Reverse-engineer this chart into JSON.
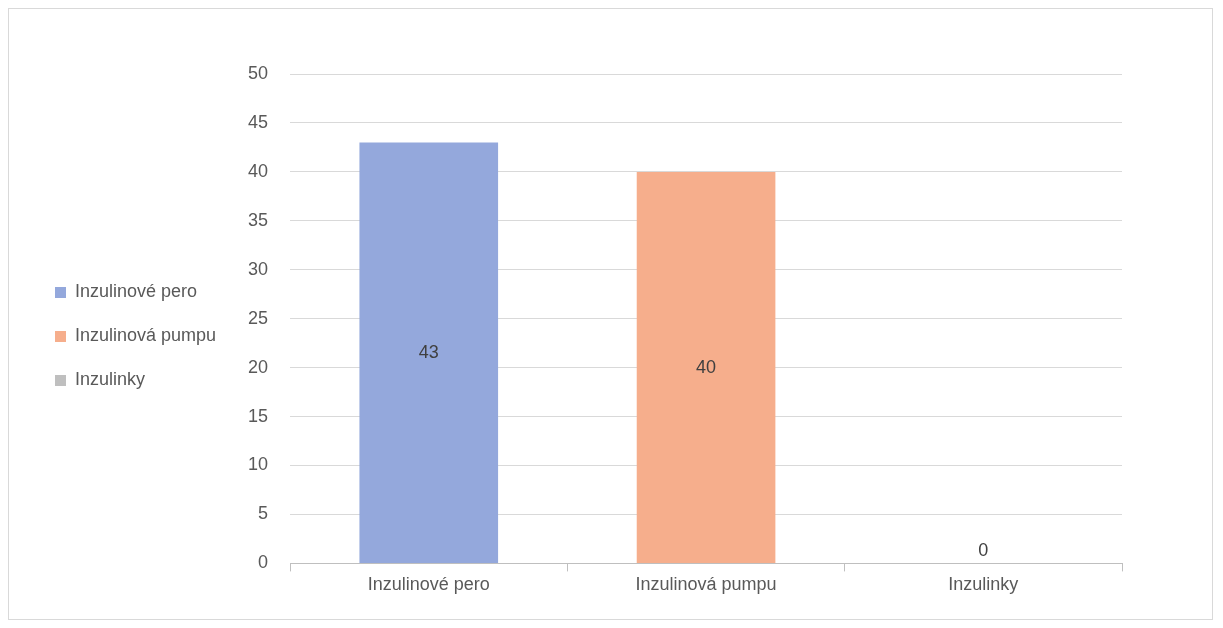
{
  "chart_data": {
    "type": "bar",
    "categories": [
      "Inzulinové pero",
      "Inzulinová pumpu",
      "Inzulinky"
    ],
    "series": [
      {
        "name": "Inzulinové pero",
        "color": "#94a8dc",
        "values": [
          43,
          null,
          null
        ]
      },
      {
        "name": "Inzulinová pumpu",
        "color": "#f6ae8c",
        "values": [
          null,
          40,
          null
        ]
      },
      {
        "name": "Inzulinky",
        "color": "#bfbfbf",
        "values": [
          null,
          null,
          0
        ]
      }
    ],
    "ylim": [
      0,
      50
    ],
    "yticks": [
      0,
      5,
      10,
      15,
      20,
      25,
      30,
      35,
      40,
      45,
      50
    ],
    "grid": "y",
    "legend": "left",
    "data_labels": true
  }
}
